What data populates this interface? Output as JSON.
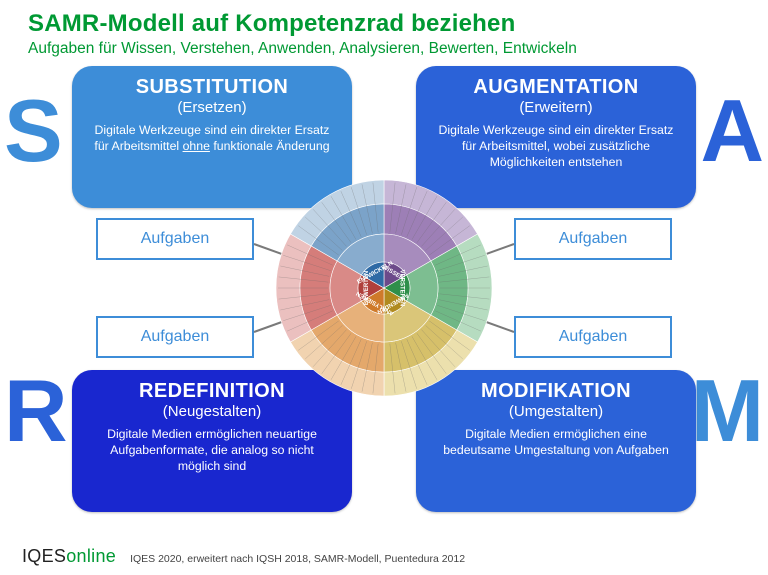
{
  "header": {
    "title": "SAMR-Modell auf Kompetenzrad beziehen",
    "subtitle": "Aufgaben für Wissen, Verstehen, Anwenden, Analysieren, Bewerten, Entwickeln",
    "title_color": "#009933"
  },
  "letters": {
    "s": "S",
    "a": "A",
    "r": "R",
    "m": "M"
  },
  "cards": {
    "s": {
      "heading": "SUBSTITUTION",
      "sub": "(Ersetzen)",
      "body_pre": "Digitale Werkzeuge sind ein direkter Ersatz für Arbeitsmittel ",
      "body_ul": "ohne",
      "body_post": " funktionale Änderung",
      "bg": "#3d8dd8"
    },
    "a": {
      "heading": "AUGMENTATION",
      "sub": "(Erweitern)",
      "body": "Digitale Werkzeuge sind ein direkter Ersatz für Arbeitsmittel, wobei zusätzliche Möglichkeiten entstehen",
      "bg": "#2b62d8"
    },
    "r": {
      "heading": "REDEFINITION",
      "sub": "(Neugestalten)",
      "body": "Digitale Medien ermöglichen neuartige Aufgabenformate, die analog so nicht möglich sind",
      "bg": "#1927cf"
    },
    "m": {
      "heading": "MODIFIKATION",
      "sub": "(Umgestalten)",
      "body": "Digitale Medien ermöglichen eine bedeutsame Umgestaltung von Aufgaben",
      "bg": "#2b62d8"
    }
  },
  "taskbox_label": "Aufgaben",
  "taskbox_border": "#3d8dd8",
  "arrow_color": "#7a7a7a",
  "wheel": {
    "sectors": [
      {
        "name": "WISSEN",
        "core_color": "#6c4a8a",
        "mid_color": "#9d7fb6",
        "outer_color": "#c6b6d6"
      },
      {
        "name": "VERSTEHEN",
        "core_color": "#2f8f4a",
        "mid_color": "#6fb785",
        "outer_color": "#b6dcc0"
      },
      {
        "name": "ANWENDEN",
        "core_color": "#b08a1e",
        "mid_color": "#d6c06a",
        "outer_color": "#ece0ad"
      },
      {
        "name": "ANALYSIEREN",
        "core_color": "#cf7a2a",
        "mid_color": "#e4a86b",
        "outer_color": "#f1d3b0"
      },
      {
        "name": "BEWERTEN",
        "core_color": "#b0403c",
        "mid_color": "#d57d7a",
        "outer_color": "#ebc0bf"
      },
      {
        "name": "ENTWICKELN",
        "core_color": "#2f6aa5",
        "mid_color": "#7ba3c9",
        "outer_color": "#c0d3e4"
      }
    ],
    "ring_radii": {
      "core": 26,
      "mid": 54,
      "outer": 84,
      "full": 108
    },
    "center_fill": "#ffffff"
  },
  "footer": {
    "brand_plain": "IQES",
    "brand_green": "online",
    "source": "IQES 2020, erweitert nach IQSH 2018, SAMR-Modell, Puentedura 2012"
  }
}
